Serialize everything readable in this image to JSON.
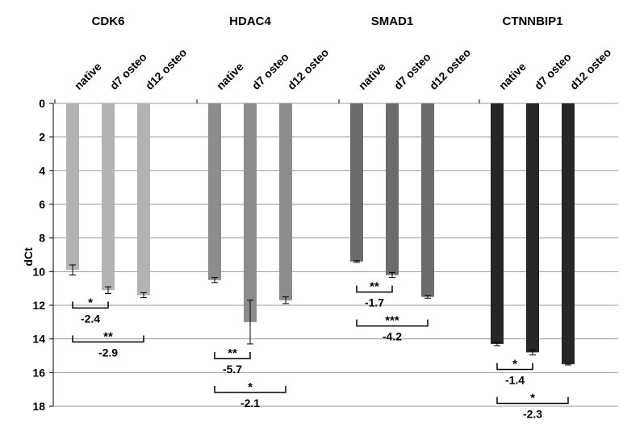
{
  "chart_data": {
    "type": "bar",
    "ylabel": "dCt",
    "ylim": [
      0,
      18
    ],
    "y_inverted": true,
    "y_ticks": [
      0,
      2,
      4,
      6,
      8,
      10,
      12,
      14,
      16,
      18
    ],
    "grid": true,
    "conditions": [
      "native",
      "d7 osteo",
      "d12 osteo"
    ],
    "groups": [
      {
        "name": "CDK6",
        "color": "#b3b3b3",
        "values": [
          9.9,
          11.1,
          11.4
        ],
        "errors": [
          0.3,
          0.2,
          0.15
        ],
        "comparisons": [
          {
            "from": 0,
            "to": 1,
            "stars": "*",
            "fold": "-2.4"
          },
          {
            "from": 0,
            "to": 2,
            "stars": "**",
            "fold": "-2.9"
          }
        ]
      },
      {
        "name": "HDAC4",
        "color": "#8c8c8c",
        "values": [
          10.5,
          13.0,
          11.7
        ],
        "errors": [
          0.15,
          1.3,
          0.2
        ],
        "comparisons": [
          {
            "from": 0,
            "to": 1,
            "stars": "**",
            "fold": "-5.7"
          },
          {
            "from": 0,
            "to": 2,
            "stars": "*",
            "fold": "-2.1"
          }
        ]
      },
      {
        "name": "SMAD1",
        "color": "#6b6b6b",
        "values": [
          9.4,
          10.2,
          11.5
        ],
        "errors": [
          0.05,
          0.15,
          0.08
        ],
        "comparisons": [
          {
            "from": 0,
            "to": 1,
            "stars": "**",
            "fold": "-1.7"
          },
          {
            "from": 0,
            "to": 2,
            "stars": "***",
            "fold": "-4.2"
          }
        ]
      },
      {
        "name": "CTNNBIP1",
        "color": "#262626",
        "values": [
          14.3,
          14.8,
          15.5
        ],
        "errors": [
          0.1,
          0.15,
          0.05
        ],
        "comparisons": [
          {
            "from": 0,
            "to": 1,
            "stars": "*",
            "fold": "-1.4"
          },
          {
            "from": 0,
            "to": 2,
            "stars": "*",
            "fold": "-2.3"
          }
        ]
      }
    ]
  }
}
